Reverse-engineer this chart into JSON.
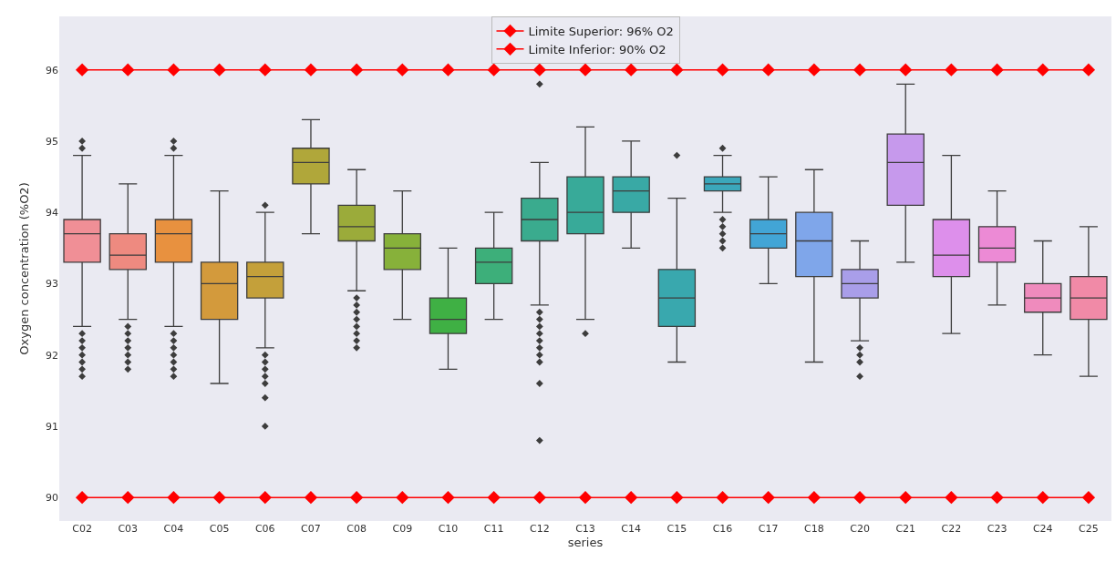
{
  "chart_data": {
    "type": "box",
    "xlabel": "series",
    "ylabel": "Oxygen concentration (%O2)",
    "categories": [
      "C02",
      "C03",
      "C04",
      "C05",
      "C06",
      "C07",
      "C08",
      "C09",
      "C10",
      "C11",
      "C12",
      "C13",
      "C14",
      "C15",
      "C16",
      "C17",
      "C18",
      "C20",
      "C21",
      "C22",
      "C23",
      "C24",
      "C25"
    ],
    "colors": [
      "#f08f96",
      "#ee8a80",
      "#e8913f",
      "#d39a3c",
      "#c4a03a",
      "#b0a73a",
      "#9bab3a",
      "#87b13a",
      "#3fb044",
      "#3daf7a",
      "#3aab8e",
      "#38aa99",
      "#39a9a5",
      "#39a8ae",
      "#3ba7bb",
      "#42a5d6",
      "#7fa6ea",
      "#a99ee9",
      "#c699ec",
      "#dd8feb",
      "#ec8ad5",
      "#ef8bbd",
      "#f18aa7"
    ],
    "boxes": [
      {
        "low": 92.4,
        "q1": 93.3,
        "median": 93.7,
        "q3": 93.9,
        "high": 94.8,
        "outliers": [
          95.0,
          94.9,
          92.3,
          92.2,
          92.1,
          92.0,
          91.9,
          91.8,
          91.7
        ]
      },
      {
        "low": 92.5,
        "q1": 93.2,
        "median": 93.4,
        "q3": 93.7,
        "high": 94.4,
        "outliers": [
          92.4,
          92.3,
          92.2,
          92.1,
          92.0,
          91.9,
          91.8
        ]
      },
      {
        "low": 92.4,
        "q1": 93.3,
        "median": 93.7,
        "q3": 93.9,
        "high": 94.8,
        "outliers": [
          95.0,
          94.9,
          92.3,
          92.2,
          92.1,
          92.0,
          91.9,
          91.8,
          91.7
        ]
      },
      {
        "low": 91.6,
        "q1": 92.5,
        "median": 93.0,
        "q3": 93.3,
        "high": 94.3
      },
      {
        "low": 92.1,
        "q1": 92.8,
        "median": 93.1,
        "q3": 93.3,
        "high": 94.0,
        "outliers": [
          94.1,
          92.0,
          91.9,
          91.8,
          91.7,
          91.6,
          91.4,
          91.0
        ]
      },
      {
        "low": 93.7,
        "q1": 94.4,
        "median": 94.7,
        "q3": 94.9,
        "high": 95.3
      },
      {
        "low": 92.9,
        "q1": 93.6,
        "median": 93.8,
        "q3": 94.1,
        "high": 94.6,
        "outliers": [
          92.8,
          92.7,
          92.6,
          92.5,
          92.4,
          92.3,
          92.2,
          92.1
        ]
      },
      {
        "low": 92.5,
        "q1": 93.2,
        "median": 93.5,
        "q3": 93.7,
        "high": 94.3
      },
      {
        "low": 91.8,
        "q1": 92.3,
        "median": 92.5,
        "q3": 92.8,
        "high": 93.5
      },
      {
        "low": 92.5,
        "q1": 93.0,
        "median": 93.3,
        "q3": 93.5,
        "high": 94.0
      },
      {
        "low": 92.7,
        "q1": 93.6,
        "median": 93.9,
        "q3": 94.2,
        "high": 94.7,
        "outliers": [
          95.8,
          92.6,
          92.5,
          92.4,
          92.3,
          92.2,
          92.1,
          92.0,
          91.9,
          91.6,
          90.8
        ]
      },
      {
        "low": 92.5,
        "q1": 93.7,
        "median": 94.0,
        "q3": 94.5,
        "high": 95.2,
        "outliers": [
          92.3
        ]
      },
      {
        "low": 93.5,
        "q1": 94.0,
        "median": 94.3,
        "q3": 94.5,
        "high": 95.0
      },
      {
        "low": 91.9,
        "q1": 92.4,
        "median": 92.8,
        "q3": 93.2,
        "high": 94.2,
        "outliers": [
          94.8
        ]
      },
      {
        "low": 94.0,
        "q1": 94.3,
        "median": 94.4,
        "q3": 94.5,
        "high": 94.8,
        "outliers": [
          94.9,
          93.9,
          93.8,
          93.7,
          93.6,
          93.5
        ]
      },
      {
        "low": 93.0,
        "q1": 93.5,
        "median": 93.7,
        "q3": 93.9,
        "high": 94.5
      },
      {
        "low": 91.9,
        "q1": 93.1,
        "median": 93.6,
        "q3": 94.0,
        "high": 94.6
      },
      {
        "low": 92.2,
        "q1": 92.8,
        "median": 93.0,
        "q3": 93.2,
        "high": 93.6,
        "outliers": [
          92.1,
          92.0,
          91.9,
          91.7
        ]
      },
      {
        "low": 93.3,
        "q1": 94.1,
        "median": 94.7,
        "q3": 95.1,
        "high": 95.8
      },
      {
        "low": 92.3,
        "q1": 93.1,
        "median": 93.4,
        "q3": 93.9,
        "high": 94.8
      },
      {
        "low": 92.7,
        "q1": 93.3,
        "median": 93.5,
        "q3": 93.8,
        "high": 94.3
      },
      {
        "low": 92.0,
        "q1": 92.6,
        "median": 92.8,
        "q3": 93.0,
        "high": 93.6
      },
      {
        "low": 91.7,
        "q1": 92.5,
        "median": 92.8,
        "q3": 93.1,
        "high": 93.8
      }
    ],
    "series": [
      {
        "type": "line",
        "name": "Limite Superior: 96% O2",
        "color": "#ff0000",
        "marker": "diamond",
        "values": [
          96,
          96,
          96,
          96,
          96,
          96,
          96,
          96,
          96,
          96,
          96,
          96,
          96,
          96,
          96,
          96,
          96,
          96,
          96,
          96,
          96,
          96,
          96
        ]
      },
      {
        "type": "line",
        "name": "Limite Inferior: 90% O2",
        "color": "#ff0000",
        "marker": "diamond",
        "values": [
          90,
          90,
          90,
          90,
          90,
          90,
          90,
          90,
          90,
          90,
          90,
          90,
          90,
          90,
          90,
          90,
          90,
          90,
          90,
          90,
          90,
          90,
          90
        ]
      }
    ],
    "ylim": [
      89.67,
      96.75
    ],
    "yticks": [
      90,
      91,
      92,
      93,
      94,
      95,
      96
    ],
    "grid": false,
    "legend": "top"
  }
}
